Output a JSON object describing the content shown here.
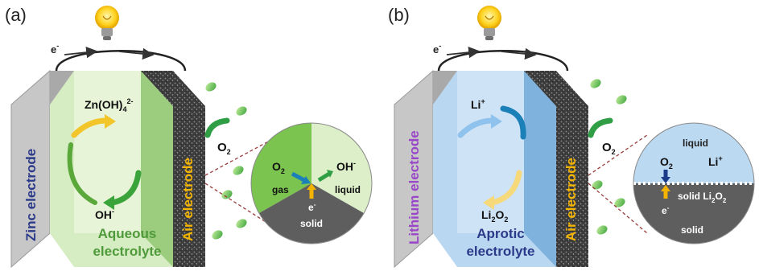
{
  "panels": [
    {
      "label": "(a)",
      "electron": "e",
      "electron_sup": "-",
      "negative_electrode": "Zinc electrode",
      "air_electrode": "Air electrode",
      "ion_top_base": "Zn(OH)",
      "ion_top_sub": "4",
      "ion_top_sup": "2-",
      "ion_bottom_base": "OH",
      "ion_bottom_sup": "-",
      "electrolyte_line1": "Aqueous",
      "electrolyte_line2": "electrolyte",
      "oxygen_base": "O",
      "oxygen_sub": "2",
      "inset": {
        "o2_base": "O",
        "o2_sub": "2",
        "gas": "gas",
        "oh_base": "OH",
        "oh_sup": "-",
        "liquid": "liquid",
        "e_base": "e",
        "e_sup": "-",
        "solid": "solid"
      }
    },
    {
      "label": "(b)",
      "electron": "e",
      "electron_sup": "-",
      "negative_electrode": "Lithium electrode",
      "air_electrode": "Air electrode",
      "ion_top_base": "Li",
      "ion_top_sup": "+",
      "ion_bottom_base": "Li",
      "ion_bottom_sub": "2",
      "ion_bottom_tail": "O",
      "ion_bottom_sub2": "2",
      "electrolyte_line1": "Aprotic",
      "electrolyte_line2": "electrolyte",
      "oxygen_base": "O",
      "oxygen_sub": "2",
      "inset": {
        "liquid": "liquid",
        "o2_base": "O",
        "o2_sub": "2",
        "li_base": "Li",
        "li_sup": "+",
        "solid_product_prefix": "solid ",
        "solid_product_base": "Li",
        "solid_product_sub": "2",
        "solid_product_tail": "O",
        "solid_product_sub2": "2",
        "e_base": "e",
        "e_sup": "-",
        "solid": "solid"
      }
    }
  ],
  "colors": {
    "zinc_face": "#cfcfcf",
    "aqueous": "#cfe9b8",
    "aqueous_dark": "#9fcc7e",
    "aprotic": "#b7d6f0",
    "aprotic_dark": "#7fb2dd",
    "air_electrode_text": "#f3b400",
    "zinc_text": "#2c3a8a",
    "lithium_text": "#9a46c8",
    "green_arrow": "#2f9e44",
    "blue_arrow": "#1b7fb8"
  },
  "icons": [
    "light-bulb-icon",
    "oxygen-molecule-icon"
  ]
}
